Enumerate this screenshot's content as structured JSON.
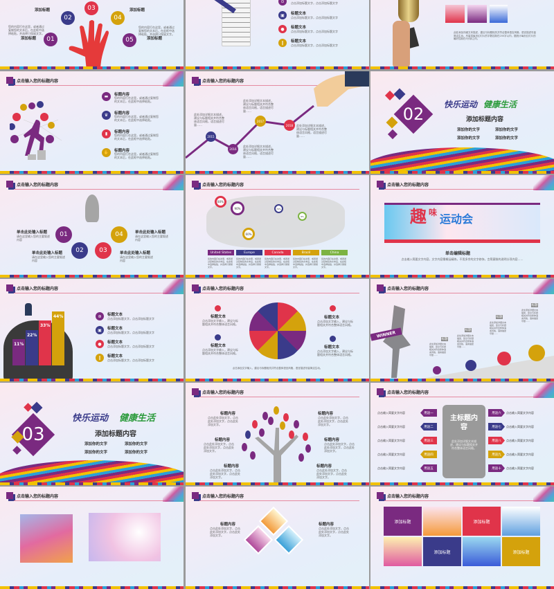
{
  "colors": {
    "purple": "#7a2a80",
    "navy": "#3a3b8a",
    "red": "#e0344a",
    "gold": "#d4a20c",
    "green": "#7cb342",
    "gray": "#a5a5a5"
  },
  "slide_header": "点击输入您的标题内容",
  "hand_slide": {
    "numbers": [
      "01",
      "02",
      "03",
      "04",
      "05"
    ],
    "label": "添加标题",
    "body": "您的内容打在这里，或者通过复制您的文本后，在此框中选择粘贴，并选择只保留文字。"
  },
  "document_slide": {
    "item_title": "标题文本",
    "item_body": "点击添加标题文字，点击添加标题文字"
  },
  "trophy_slide": {
    "body": "此处添加详细文本描述，建议与标题相关并符合整体语言风格，语言描述尽量简洁生动。尽量将每页幻灯片的字数控制在200字以内，据统计每页幻灯片的最好控制在5分钟之内。"
  },
  "icons_slide": {
    "items": [
      "标题内容",
      "标题内容",
      "标题内容",
      "标题内容"
    ],
    "body": "您的内容打在这里，或者通过复制您的文本后，在此框中选择粘贴。"
  },
  "chart_slide": {
    "years": [
      "2015",
      "2016",
      "2017",
      "2018"
    ],
    "body": "此处添加详细文本描述，建议与标题相关并符合整体语言风格，语言描述尽量……"
  },
  "section2": {
    "number": "02",
    "slogan_a": "快乐运动",
    "slogan_b": "健康生活",
    "title": "添加标题内容",
    "bullets": [
      "添加你的文字",
      "添加你的文字",
      "添加你的文字",
      "添加你的文字"
    ]
  },
  "rocket_slide": {
    "numbers": [
      "01",
      "02",
      "03",
      "04"
    ],
    "label": "单击此处输入标题",
    "body": "请在这里输入您的主要叙述内容"
  },
  "map_slide": {
    "pins": [
      "80%",
      "90%",
      "60%",
      "70%",
      "9%"
    ],
    "regions": [
      "United States",
      "Europe",
      "Canada",
      "Brazil",
      "China"
    ],
    "body": "您的内容打在这里，或者通过复制您的文本后，在此框中选择粘贴，并选择只保留文字。"
  },
  "banner_slide": {
    "banner_a": "趣",
    "banner_b": "味",
    "banner_c": "运动会",
    "title": "单击编辑标题",
    "body": "点击输入简要文字内容，文字内容需概括精炼，不用多余的文字修饰，言简意赅的说明分项内容……"
  },
  "head_slide": {
    "bars": [
      {
        "label": "11%",
        "value": 11
      },
      {
        "label": "22%",
        "value": 22
      },
      {
        "label": "33%",
        "value": 33
      },
      {
        "label": "44%",
        "value": 44
      }
    ],
    "item_title": "标题文本",
    "item_body": "点击添加标题文字，点击添加标题文字"
  },
  "umbrella_slide": {
    "item_title": "标题文本",
    "body": "点击添加文字输入，建议与标题相关并符合整体语言风格。",
    "footer": "点击添加文字输入，建议与标题相关并符合整体语言风格，语言描述尽量简洁生动。"
  },
  "winner_slide": {
    "banner": "WINNER",
    "tag": "标题",
    "body": "此处添加详细文本描述，建议与标题相关并符合整体语言风格，语言描述尽量……"
  },
  "section3": {
    "number": "03",
    "slogan_a": "快乐运动",
    "slogan_b": "健康生活",
    "title": "添加标题内容",
    "bullets": [
      "添加你的文字",
      "添加你的文字",
      "添加你的文字",
      "添加你的文字"
    ]
  },
  "tree_slide": {
    "item_title": "标题内容",
    "body": "点击此处添加文字，点击此处添加文字，点击此处添加文字。"
  },
  "flow_slide": {
    "center_title": "主标题内容",
    "center_body": "此处添加详细文本描述，建议与标题相关并符合整体语言风格。",
    "left": [
      "用途一",
      "用途二",
      "用途三",
      "用途四",
      "用途五"
    ],
    "right": [
      "用途六",
      "用途七",
      "用途八",
      "用途九",
      "用途十"
    ],
    "item_text": "点击输入简要文字内容"
  },
  "tiles_slide": {
    "tile_label": "添加标题"
  },
  "diamond_slide": {
    "item_title": "标题内容",
    "body": "点击此处添加文字，点击此处添加文字，点击此处添加文字。"
  }
}
